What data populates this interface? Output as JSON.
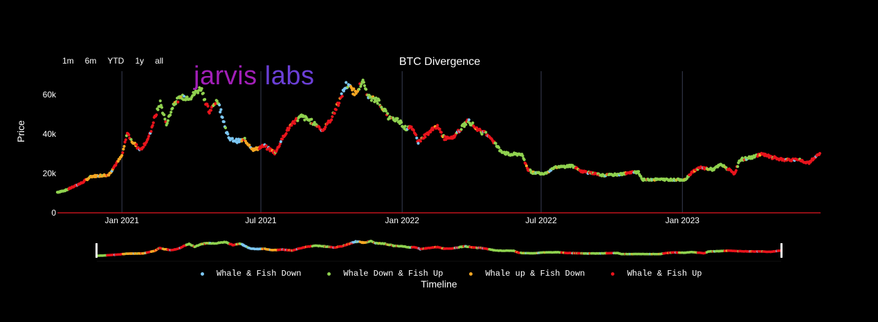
{
  "toolbar": {
    "range_buttons": [
      "1m",
      "6m",
      "YTD",
      "1y",
      "all"
    ]
  },
  "logo": {
    "part1": "jarvis",
    "part2": "labs",
    "colors": [
      "#a21fb8",
      "#6b3fd6"
    ]
  },
  "colors": {
    "background": "#000000",
    "grid": "#3a3f55",
    "baseline": "#c0141c",
    "whale_fish_down": "#7cc6f2",
    "whale_down_fish_up": "#8fd14f",
    "whale_up_fish_down": "#f5a623",
    "whale_fish_up": "#e8141c"
  },
  "chart_data": {
    "type": "scatter",
    "title": "BTC Divergence",
    "xlabel": "Timeline",
    "ylabel": "Price",
    "x_ticks": [
      "Jan 2021",
      "Jul 2021",
      "Jan 2022",
      "Jul 2022",
      "Jan 2023"
    ],
    "y_ticks": [
      "0",
      "20k",
      "40k",
      "60k"
    ],
    "xlim": [
      "2020-10-09",
      "2023-06-30"
    ],
    "ylim": [
      0,
      72000
    ],
    "grid": true,
    "legend_position": "bottom",
    "range_slider": true,
    "series": [
      {
        "name": "Whale & Fish Down",
        "color_key": "whale_fish_down"
      },
      {
        "name": "Whale Down & Fish Up",
        "color_key": "whale_down_fish_up"
      },
      {
        "name": "Whale up & Fish Down",
        "color_key": "whale_up_fish_down"
      },
      {
        "name": "Whale & Fish Up",
        "color_key": "whale_fish_up"
      }
    ],
    "price_path": [
      [
        "2020-10-09",
        10500,
        1
      ],
      [
        "2020-10-20",
        11500,
        1
      ],
      [
        "2020-10-28",
        13000,
        3
      ],
      [
        "2020-11-10",
        15300,
        3
      ],
      [
        "2020-11-22",
        18500,
        2
      ],
      [
        "2020-12-05",
        19000,
        2
      ],
      [
        "2020-12-15",
        19300,
        2
      ],
      [
        "2020-12-22",
        23500,
        3
      ],
      [
        "2021-01-01",
        29000,
        2
      ],
      [
        "2021-01-08",
        40500,
        3
      ],
      [
        "2021-01-15",
        36000,
        2
      ],
      [
        "2021-01-25",
        32000,
        3
      ],
      [
        "2021-02-05",
        38000,
        3
      ],
      [
        "2021-02-12",
        47500,
        3
      ],
      [
        "2021-02-20",
        56000,
        1
      ],
      [
        "2021-02-28",
        45000,
        1
      ],
      [
        "2021-03-10",
        56000,
        1
      ],
      [
        "2021-03-20",
        58500,
        1
      ],
      [
        "2021-04-01",
        59000,
        1
      ],
      [
        "2021-04-14",
        63500,
        1
      ],
      [
        "2021-04-25",
        51000,
        3
      ],
      [
        "2021-05-05",
        57500,
        1
      ],
      [
        "2021-05-12",
        49000,
        0
      ],
      [
        "2021-05-20",
        37500,
        0
      ],
      [
        "2021-06-01",
        36500,
        0
      ],
      [
        "2021-06-10",
        37000,
        2
      ],
      [
        "2021-06-22",
        32000,
        2
      ],
      [
        "2021-07-05",
        34000,
        3
      ],
      [
        "2021-07-20",
        30500,
        3
      ],
      [
        "2021-08-01",
        40000,
        3
      ],
      [
        "2021-08-12",
        46000,
        3
      ],
      [
        "2021-08-23",
        49000,
        1
      ],
      [
        "2021-09-07",
        46000,
        1
      ],
      [
        "2021-09-20",
        42000,
        3
      ],
      [
        "2021-10-01",
        48000,
        3
      ],
      [
        "2021-10-08",
        54000,
        3
      ],
      [
        "2021-10-20",
        65000,
        0
      ],
      [
        "2021-11-01",
        61000,
        2
      ],
      [
        "2021-11-10",
        67000,
        1
      ],
      [
        "2021-11-20",
        58000,
        1
      ],
      [
        "2021-12-01",
        57000,
        1
      ],
      [
        "2021-12-15",
        48000,
        1
      ],
      [
        "2021-12-28",
        47000,
        1
      ],
      [
        "2022-01-05",
        43000,
        1
      ],
      [
        "2022-01-15",
        43000,
        3
      ],
      [
        "2022-01-22",
        36000,
        3
      ],
      [
        "2022-02-05",
        41000,
        3
      ],
      [
        "2022-02-15",
        44000,
        3
      ],
      [
        "2022-02-25",
        38000,
        3
      ],
      [
        "2022-03-10",
        39000,
        3
      ],
      [
        "2022-03-28",
        47000,
        1
      ],
      [
        "2022-04-10",
        42000,
        3
      ],
      [
        "2022-04-25",
        39000,
        3
      ],
      [
        "2022-05-08",
        32000,
        1
      ],
      [
        "2022-05-20",
        29500,
        1
      ],
      [
        "2022-06-05",
        30000,
        1
      ],
      [
        "2022-06-14",
        22000,
        3
      ],
      [
        "2022-06-20",
        20500,
        1
      ],
      [
        "2022-07-05",
        20000,
        1
      ],
      [
        "2022-07-20",
        23000,
        1
      ],
      [
        "2022-08-10",
        24000,
        1
      ],
      [
        "2022-08-20",
        21500,
        3
      ],
      [
        "2022-09-05",
        20000,
        3
      ],
      [
        "2022-09-20",
        19000,
        1
      ],
      [
        "2022-10-10",
        19500,
        1
      ],
      [
        "2022-10-28",
        20500,
        3
      ],
      [
        "2022-11-05",
        20800,
        1
      ],
      [
        "2022-11-10",
        16800,
        1
      ],
      [
        "2022-12-01",
        17000,
        1
      ],
      [
        "2022-12-20",
        16800,
        1
      ],
      [
        "2023-01-05",
        16900,
        1
      ],
      [
        "2023-01-14",
        21000,
        3
      ],
      [
        "2023-01-25",
        23000,
        3
      ],
      [
        "2023-02-10",
        22000,
        1
      ],
      [
        "2023-02-20",
        24500,
        1
      ],
      [
        "2023-03-10",
        20000,
        3
      ],
      [
        "2023-03-17",
        27000,
        1
      ],
      [
        "2023-04-05",
        28500,
        1
      ],
      [
        "2023-04-12",
        30000,
        3
      ],
      [
        "2023-04-25",
        28500,
        3
      ],
      [
        "2023-05-10",
        27000,
        3
      ],
      [
        "2023-06-01",
        26800,
        3
      ],
      [
        "2023-06-15",
        25500,
        3
      ],
      [
        "2023-06-30",
        30500,
        3
      ]
    ]
  }
}
